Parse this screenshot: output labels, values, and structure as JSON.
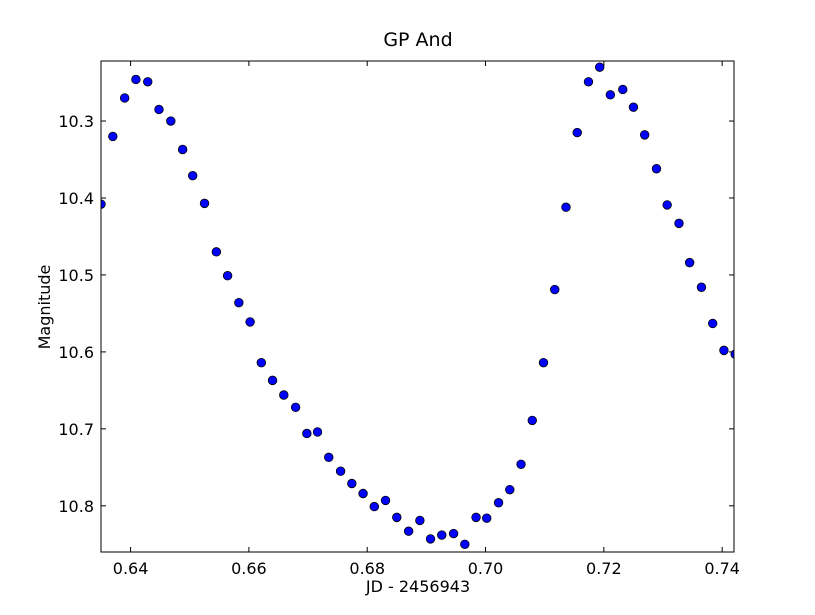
{
  "chart_data": {
    "type": "scatter",
    "title": "GP And",
    "xlabel": "JD - 2456943",
    "ylabel": "Magnitude",
    "xlim": [
      0.635,
      0.742
    ],
    "ylim": [
      10.222,
      10.86
    ],
    "y_inverted": true,
    "grid": false,
    "legend": "none",
    "marker_color": "#0000ff",
    "marker_edge_color": "#000000",
    "xticks": [
      {
        "value": 0.64,
        "label": "0.64"
      },
      {
        "value": 0.66,
        "label": "0.66"
      },
      {
        "value": 0.68,
        "label": "0.68"
      },
      {
        "value": 0.7,
        "label": "0.70"
      },
      {
        "value": 0.72,
        "label": "0.72"
      },
      {
        "value": 0.74,
        "label": "0.74"
      }
    ],
    "yticks": [
      {
        "value": 10.3,
        "label": "10.3"
      },
      {
        "value": 10.4,
        "label": "10.4"
      },
      {
        "value": 10.5,
        "label": "10.5"
      },
      {
        "value": 10.6,
        "label": "10.6"
      },
      {
        "value": 10.7,
        "label": "10.7"
      },
      {
        "value": 10.8,
        "label": "10.8"
      }
    ],
    "points": [
      [
        0.635,
        10.408
      ],
      [
        0.637,
        10.32
      ],
      [
        0.639,
        10.27
      ],
      [
        0.6409,
        10.246
      ],
      [
        0.6429,
        10.249
      ],
      [
        0.6448,
        10.285
      ],
      [
        0.6468,
        10.3
      ],
      [
        0.6488,
        10.337
      ],
      [
        0.6505,
        10.371
      ],
      [
        0.6525,
        10.407
      ],
      [
        0.6545,
        10.47
      ],
      [
        0.6564,
        10.501
      ],
      [
        0.6583,
        10.536
      ],
      [
        0.6602,
        10.561
      ],
      [
        0.6621,
        10.614
      ],
      [
        0.664,
        10.637
      ],
      [
        0.6659,
        10.656
      ],
      [
        0.6679,
        10.672
      ],
      [
        0.6698,
        10.706
      ],
      [
        0.6716,
        10.704
      ],
      [
        0.6735,
        10.737
      ],
      [
        0.6755,
        10.755
      ],
      [
        0.6774,
        10.771
      ],
      [
        0.6793,
        10.784
      ],
      [
        0.6812,
        10.801
      ],
      [
        0.6831,
        10.793
      ],
      [
        0.685,
        10.815
      ],
      [
        0.687,
        10.833
      ],
      [
        0.6889,
        10.819
      ],
      [
        0.6907,
        10.843
      ],
      [
        0.6926,
        10.838
      ],
      [
        0.6946,
        10.836
      ],
      [
        0.6965,
        10.85
      ],
      [
        0.6984,
        10.815
      ],
      [
        0.7002,
        10.816
      ],
      [
        0.7022,
        10.796
      ],
      [
        0.7041,
        10.779
      ],
      [
        0.706,
        10.746
      ],
      [
        0.7079,
        10.689
      ],
      [
        0.7098,
        10.614
      ],
      [
        0.7117,
        10.519
      ],
      [
        0.7136,
        10.412
      ],
      [
        0.7155,
        10.315
      ],
      [
        0.7174,
        10.249
      ],
      [
        0.7193,
        10.23
      ],
      [
        0.7211,
        10.266
      ],
      [
        0.7232,
        10.259
      ],
      [
        0.725,
        10.282
      ],
      [
        0.7269,
        10.318
      ],
      [
        0.7289,
        10.362
      ],
      [
        0.7307,
        10.409
      ],
      [
        0.7327,
        10.433
      ],
      [
        0.7345,
        10.484
      ],
      [
        0.7365,
        10.516
      ],
      [
        0.7384,
        10.563
      ],
      [
        0.7403,
        10.598
      ],
      [
        0.7422,
        10.603
      ]
    ]
  }
}
